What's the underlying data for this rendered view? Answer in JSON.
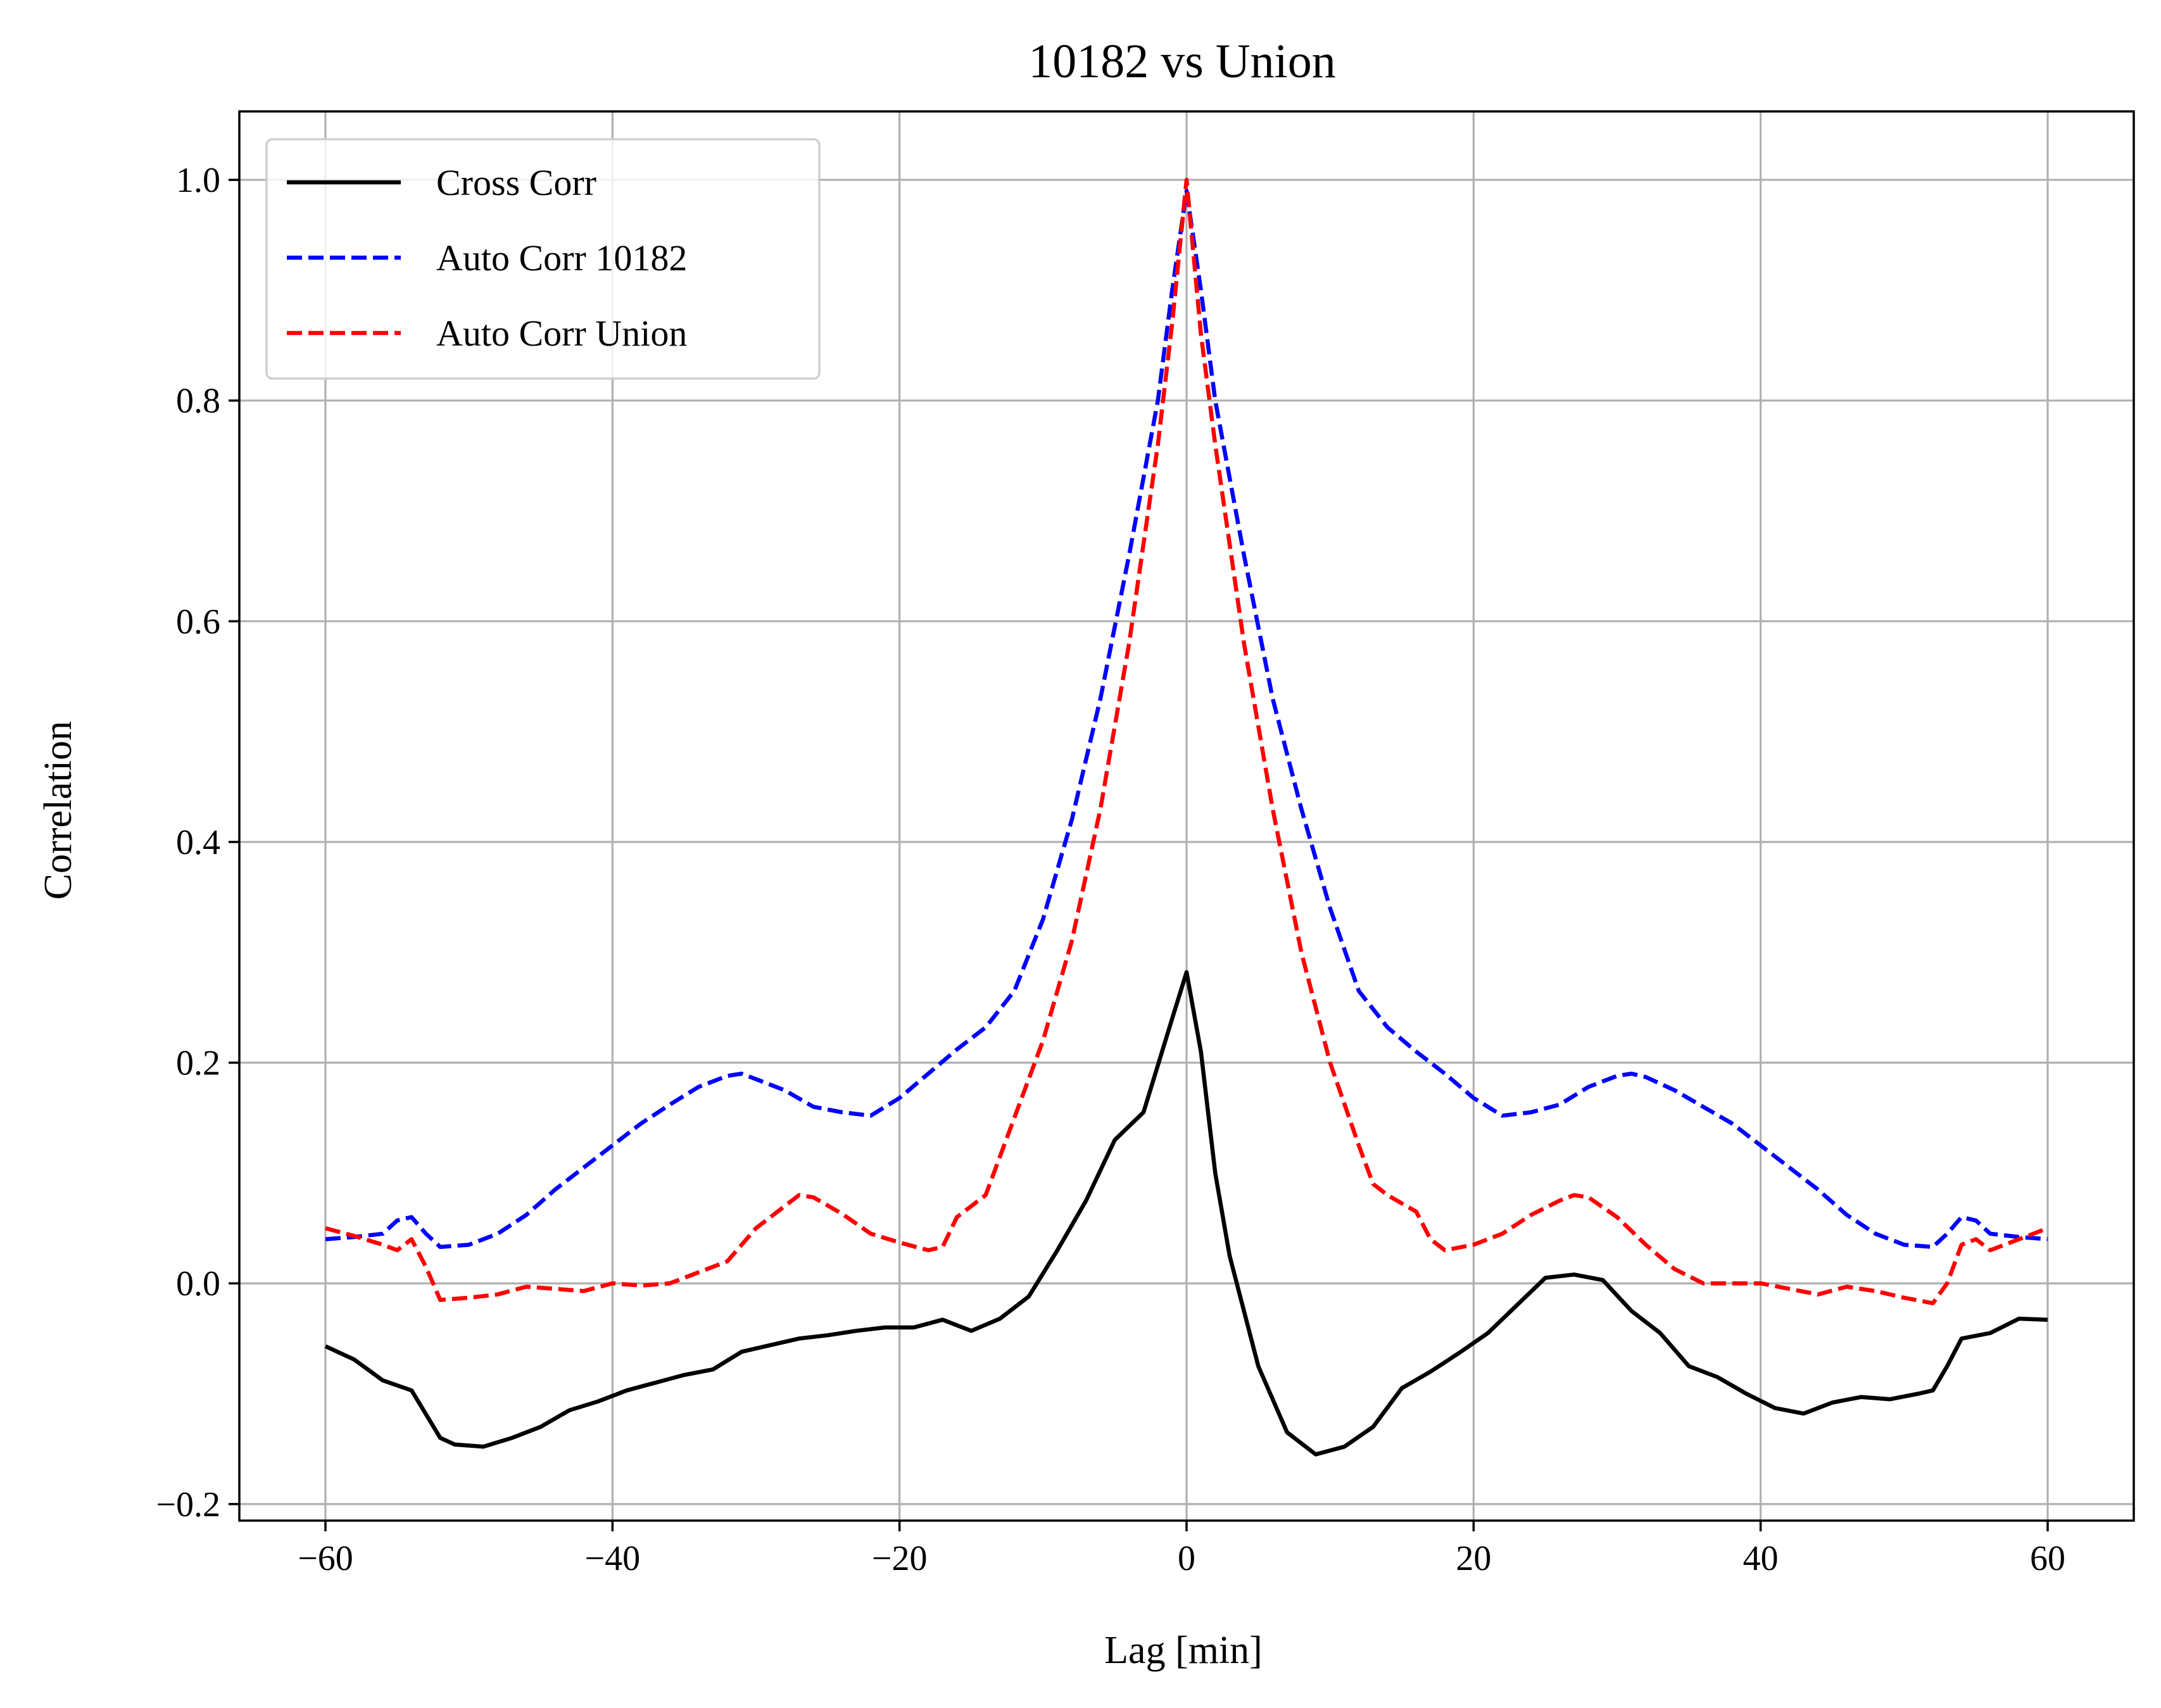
{
  "chart_data": {
    "type": "line",
    "title": "10182 vs Union",
    "xlabel": "Lag [min]",
    "ylabel": "Correlation",
    "xlim": [
      -66,
      66
    ],
    "ylim": [
      -0.215,
      1.062
    ],
    "xticks": [
      -60,
      -40,
      -20,
      0,
      20,
      40,
      60
    ],
    "xtick_labels": [
      "−60",
      "−40",
      "−20",
      "0",
      "20",
      "40",
      "60"
    ],
    "yticks": [
      -0.2,
      0.0,
      0.2,
      0.4,
      0.6,
      0.8,
      1.0
    ],
    "ytick_labels": [
      "−0.2",
      "0.0",
      "0.2",
      "0.4",
      "0.6",
      "0.8",
      "1.0"
    ],
    "grid": true,
    "legend_position": "upper-left",
    "series": [
      {
        "name": "Cross Corr",
        "color": "#000000",
        "dash": "solid",
        "x": [
          -60,
          -58,
          -56,
          -54,
          -52,
          -51,
          -49,
          -47,
          -45,
          -43,
          -41,
          -39,
          -37,
          -35,
          -33,
          -31,
          -29,
          -27,
          -25,
          -23,
          -21,
          -19,
          -17,
          -15,
          -13,
          -11,
          -9,
          -7,
          -5,
          -3,
          -1,
          0,
          1,
          2,
          3,
          5,
          7,
          9,
          11,
          13,
          15,
          17,
          19,
          21,
          23,
          25,
          27,
          29,
          31,
          33,
          35,
          37,
          39,
          41,
          43,
          45,
          47,
          49,
          51,
          52,
          53,
          54,
          56,
          58,
          60
        ],
        "y": [
          -0.057,
          -0.069,
          -0.088,
          -0.097,
          -0.14,
          -0.146,
          -0.148,
          -0.14,
          -0.13,
          -0.115,
          -0.107,
          -0.097,
          -0.09,
          -0.083,
          -0.078,
          -0.062,
          -0.056,
          -0.05,
          -0.047,
          -0.043,
          -0.04,
          -0.04,
          -0.033,
          -0.043,
          -0.032,
          -0.012,
          0.03,
          0.075,
          0.13,
          0.155,
          0.24,
          0.282,
          0.21,
          0.1,
          0.025,
          -0.075,
          -0.135,
          -0.155,
          -0.148,
          -0.13,
          -0.095,
          -0.08,
          -0.063,
          -0.045,
          -0.02,
          0.005,
          0.008,
          0.003,
          -0.025,
          -0.045,
          -0.075,
          -0.085,
          -0.1,
          -0.113,
          -0.118,
          -0.108,
          -0.103,
          -0.105,
          -0.1,
          -0.097,
          -0.075,
          -0.05,
          -0.045,
          -0.032,
          -0.033
        ]
      },
      {
        "name": "Auto Corr 10182",
        "color": "#0000ff",
        "dash": "dashed",
        "x": [
          -60,
          -58,
          -56,
          -55,
          -54,
          -53,
          -52,
          -50,
          -48,
          -46,
          -44,
          -42,
          -40,
          -38,
          -36,
          -34,
          -32,
          -31,
          -30,
          -28,
          -26,
          -24,
          -22,
          -20,
          -18,
          -16,
          -14,
          -12,
          -10,
          -8,
          -6,
          -4,
          -2,
          -1,
          0,
          1,
          2,
          4,
          6,
          8,
          10,
          12,
          14,
          16,
          18,
          20,
          22,
          24,
          26,
          28,
          30,
          31,
          32,
          34,
          36,
          38,
          40,
          42,
          44,
          46,
          48,
          50,
          52,
          53,
          54,
          55,
          56,
          58,
          60
        ],
        "y": [
          0.04,
          0.042,
          0.045,
          0.057,
          0.06,
          0.045,
          0.033,
          0.035,
          0.045,
          0.062,
          0.085,
          0.105,
          0.125,
          0.145,
          0.162,
          0.178,
          0.188,
          0.19,
          0.185,
          0.175,
          0.16,
          0.155,
          0.152,
          0.168,
          0.19,
          0.212,
          0.232,
          0.265,
          0.33,
          0.42,
          0.53,
          0.66,
          0.8,
          0.9,
          0.99,
          0.9,
          0.8,
          0.66,
          0.53,
          0.43,
          0.34,
          0.265,
          0.232,
          0.21,
          0.19,
          0.168,
          0.152,
          0.155,
          0.162,
          0.178,
          0.188,
          0.19,
          0.187,
          0.175,
          0.16,
          0.145,
          0.125,
          0.105,
          0.085,
          0.062,
          0.045,
          0.035,
          0.033,
          0.045,
          0.06,
          0.057,
          0.045,
          0.042,
          0.04
        ]
      },
      {
        "name": "Auto Corr Union",
        "color": "#ff0000",
        "dash": "dashed",
        "x": [
          -60,
          -58,
          -56,
          -55,
          -54,
          -53,
          -52,
          -50,
          -48,
          -46,
          -44,
          -42,
          -40,
          -38,
          -36,
          -34,
          -32,
          -30,
          -28,
          -27,
          -26,
          -24,
          -22,
          -20,
          -18,
          -17,
          -16,
          -14,
          -12,
          -10,
          -8,
          -6,
          -4,
          -2,
          -1,
          0,
          1,
          2,
          4,
          6,
          8,
          10,
          12,
          13,
          14,
          16,
          17,
          18,
          20,
          22,
          24,
          26,
          27,
          28,
          30,
          32,
          34,
          36,
          38,
          40,
          42,
          44,
          46,
          48,
          50,
          52,
          53,
          54,
          55,
          56,
          58,
          60
        ],
        "y": [
          0.05,
          0.043,
          0.035,
          0.03,
          0.04,
          0.015,
          -0.015,
          -0.013,
          -0.01,
          -0.003,
          -0.005,
          -0.007,
          0.0,
          -0.002,
          0.0,
          0.01,
          0.02,
          0.05,
          0.07,
          0.08,
          0.078,
          0.063,
          0.045,
          0.037,
          0.03,
          0.033,
          0.06,
          0.08,
          0.15,
          0.22,
          0.31,
          0.43,
          0.58,
          0.76,
          0.87,
          1.0,
          0.86,
          0.76,
          0.58,
          0.43,
          0.3,
          0.2,
          0.125,
          0.09,
          0.08,
          0.065,
          0.04,
          0.03,
          0.035,
          0.045,
          0.062,
          0.075,
          0.08,
          0.078,
          0.06,
          0.035,
          0.013,
          0.0,
          0.0,
          0.0,
          -0.005,
          -0.01,
          -0.003,
          -0.007,
          -0.013,
          -0.018,
          0.0,
          0.035,
          0.04,
          0.03,
          0.04,
          0.05
        ]
      }
    ]
  }
}
